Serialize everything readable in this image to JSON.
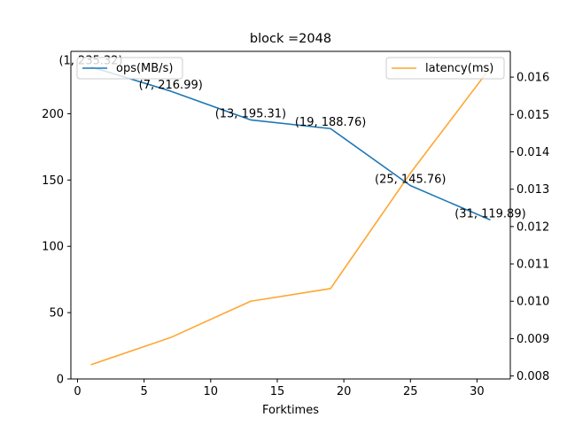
{
  "chart_data": {
    "type": "line",
    "title": "block =2048",
    "xlabel": "Forktimes",
    "ylabel_left": "",
    "ylabel_right": "",
    "xlim": [
      -0.5,
      32.5
    ],
    "ylim_left": [
      0,
      247
    ],
    "ylim_right": [
      0.00792,
      0.01669
    ],
    "x_ticks": [
      0,
      5,
      10,
      15,
      20,
      25,
      30
    ],
    "y_left_ticks": [
      0,
      50,
      100,
      150,
      200
    ],
    "y_right_ticks": [
      0.008,
      0.009,
      0.01,
      0.011,
      0.012,
      0.013,
      0.014,
      0.015,
      0.016
    ],
    "grid": false,
    "colors": {
      "ops": "#1f77b4",
      "latency": "#ffa630"
    },
    "series": [
      {
        "name": "ops(MB/s)",
        "axis": "left",
        "x": [
          1,
          7,
          13,
          19,
          25,
          31
        ],
        "values": [
          235.32,
          216.99,
          195.31,
          188.76,
          145.76,
          119.89
        ],
        "legend_position": "upper-left"
      },
      {
        "name": "latency(ms)",
        "axis": "right",
        "x": [
          1,
          7,
          13,
          19,
          25,
          31
        ],
        "values": [
          0.0083,
          0.00903,
          0.01,
          0.01034,
          0.01343,
          0.01625
        ],
        "legend_position": "upper-right"
      }
    ],
    "annotations": [
      "(1, 235.32)",
      "(7, 216.99)",
      "(13, 195.31)",
      "(19, 188.76)",
      "(25, 145.76)",
      "(31, 119.89)"
    ]
  }
}
